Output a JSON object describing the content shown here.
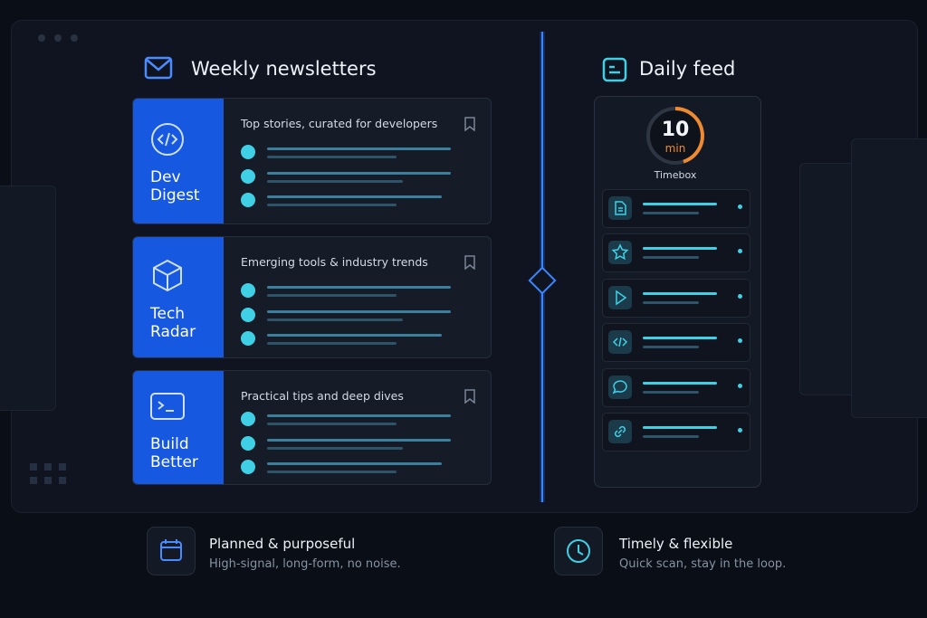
{
  "left": {
    "title": "Weekly newsletters",
    "cards": [
      {
        "name": "Dev Digest",
        "description": "Top stories, curated for developers"
      },
      {
        "name": "Tech Radar",
        "description": "Emerging tools & industry trends"
      },
      {
        "name": "Build Better",
        "description": "Practical tips and deep dives"
      }
    ]
  },
  "right": {
    "title": "Daily feed",
    "timer": {
      "number": "10",
      "unit": "min",
      "label": "Timebox"
    }
  },
  "footer": [
    {
      "title": "Planned & purposeful",
      "subtitle": "High-signal, long-form, no noise."
    },
    {
      "title": "Timely & flexible",
      "subtitle": "Quick scan, stay in the loop."
    }
  ]
}
